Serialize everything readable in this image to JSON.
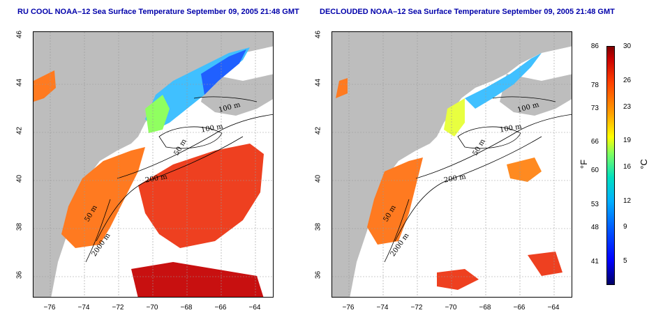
{
  "panels": [
    {
      "title": "RU COOL NOAA–12 Sea Surface Temperature September 09, 2005 21:48 GMT",
      "contour_labels": [
        "100 m",
        "100 m",
        "50 m",
        "200 m",
        "50 m",
        "2000 m"
      ]
    },
    {
      "title": "DECLOUDED NOAA–12 Sea Surface Temperature September 09, 2005 21:48 GMT",
      "contour_labels": [
        "100 m",
        "100 m",
        "50 m",
        "200 m",
        "50 m",
        "2000 m"
      ]
    }
  ],
  "axes": {
    "x_ticks": [
      "−76",
      "−74",
      "−72",
      "−70",
      "−68",
      "−66",
      "−64"
    ],
    "y_ticks": [
      "36",
      "38",
      "40",
      "42",
      "44",
      "46"
    ]
  },
  "colorbar": {
    "fahrenheit_ticks": [
      "86",
      "78",
      "73",
      "66",
      "60",
      "53",
      "48",
      "41"
    ],
    "celsius_ticks": [
      "30",
      "26",
      "23",
      "19",
      "16",
      "12",
      "9",
      "5"
    ],
    "fahrenheit_unit": "°F",
    "celsius_unit": "°C"
  },
  "colors": {
    "land": "#bdbdbd",
    "title": "#0000aa",
    "warm": "#e8401a",
    "hot": "#c81010",
    "cool": "#2060ff"
  }
}
